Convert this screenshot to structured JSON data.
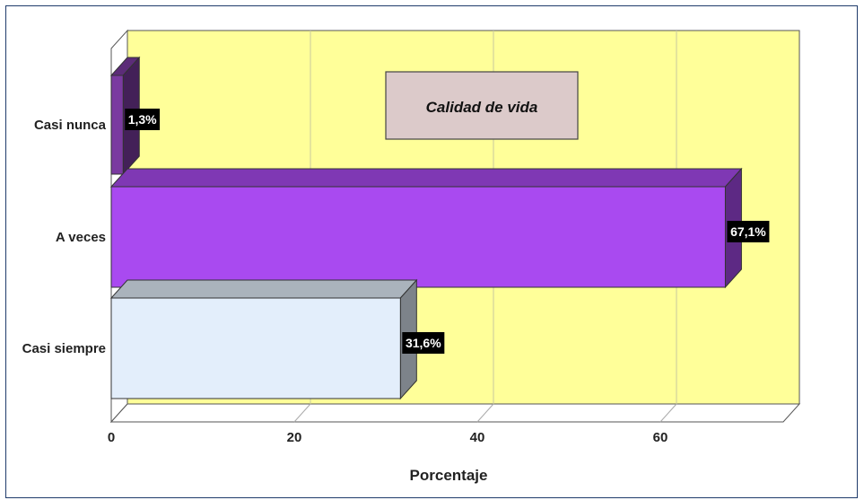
{
  "chart_data": {
    "type": "bar",
    "orientation": "horizontal",
    "legend_title": "Calidad de vida",
    "categories": [
      "Casi nunca",
      "A veces",
      "Casi siempre"
    ],
    "values": [
      1.3,
      67.1,
      31.6
    ],
    "data_labels": [
      "1,3%",
      "67,1%",
      "31,6%"
    ],
    "xlabel": "Porcentaje",
    "ylabel": "",
    "xlim": [
      0,
      70
    ],
    "xticks": [
      "0",
      "20",
      "40",
      "60"
    ],
    "grid": true,
    "colors": {
      "plot_background": "#ffff99",
      "Casi nunca": "#7a3aa0",
      "A veces": "#a94af0",
      "Casi siempre": "#e3eefb",
      "legend_box": "#dccaca",
      "label_box": "#000000"
    }
  }
}
